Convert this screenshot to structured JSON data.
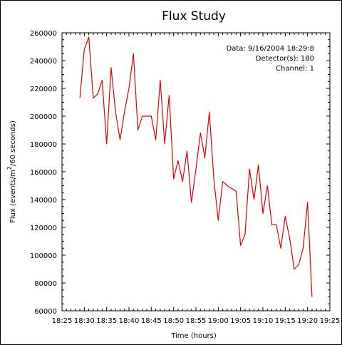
{
  "chart_data": {
    "type": "line",
    "title": "Flux Study",
    "xlabel": "Time (hours)",
    "ylabel_parts": [
      "Flux (events/m",
      "2",
      "/60 seconds)"
    ],
    "x_unit": "time of day (HH:MM)",
    "xlim": [
      "18:25",
      "19:25"
    ],
    "ylim": [
      60000,
      260000
    ],
    "x_ticks": [
      "18:25",
      "18:30",
      "18:35",
      "18:40",
      "18:45",
      "18:50",
      "18:55",
      "19:00",
      "19:05",
      "19:10",
      "19:15",
      "19:20",
      "19:25"
    ],
    "y_ticks": [
      60000,
      80000,
      100000,
      120000,
      140000,
      160000,
      180000,
      200000,
      220000,
      240000,
      260000
    ],
    "grid": false,
    "annotations": [
      "Data: 9/16/2004 18:29:8",
      "Detector(s): 180",
      "Channel: 1"
    ],
    "series": [
      {
        "color": "#dd0000",
        "x": [
          "18:29:00",
          "18:30:00",
          "18:31:00",
          "18:32:00",
          "18:33:00",
          "18:34:00",
          "18:35:00",
          "18:36:00",
          "18:37:00",
          "18:38:00",
          "18:39:00",
          "18:40:00",
          "18:41:00",
          "18:42:00",
          "18:43:00",
          "18:44:00",
          "18:45:00",
          "18:46:00",
          "18:47:00",
          "18:48:00",
          "18:49:00",
          "18:50:00",
          "18:51:00",
          "18:52:00",
          "18:53:00",
          "18:54:00",
          "18:55:00",
          "18:56:00",
          "18:57:00",
          "18:58:00",
          "18:59:00",
          "19:00:00",
          "19:01:00",
          "19:02:00",
          "19:03:00",
          "19:04:00",
          "19:05:00",
          "19:06:00",
          "19:07:00",
          "19:08:00",
          "19:09:00",
          "19:10:00",
          "19:11:00",
          "19:12:00",
          "19:13:00",
          "19:14:00",
          "19:15:00",
          "19:16:00",
          "19:17:00",
          "19:18:00",
          "19:19:00",
          "19:20:00",
          "19:21:00"
        ],
        "y": [
          213000,
          248000,
          257000,
          213000,
          216000,
          226000,
          180000,
          235000,
          203000,
          183000,
          203000,
          220000,
          245000,
          190000,
          200000,
          200000,
          200000,
          183000,
          226000,
          180000,
          215000,
          155000,
          168000,
          153000,
          175000,
          138000,
          162000,
          188000,
          170000,
          203000,
          155000,
          125000,
          153000,
          150000,
          148000,
          146000,
          107000,
          115000,
          162000,
          140000,
          165000,
          130000,
          150000,
          122000,
          122000,
          105000,
          128000,
          112000,
          90000,
          93000,
          105000,
          138000,
          70000
        ]
      }
    ]
  }
}
